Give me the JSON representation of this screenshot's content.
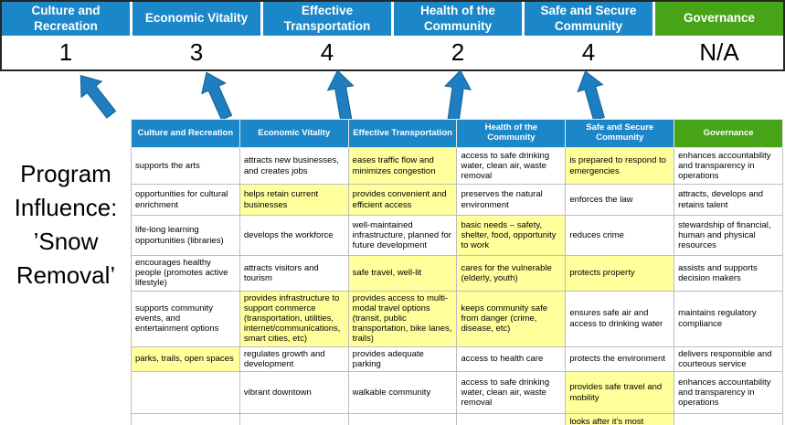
{
  "colors": {
    "header_blue": "#1b87c9",
    "header_green": "#47a417",
    "highlight_yellow": "#ffff9c",
    "arrow_blue": "#1f7ec2"
  },
  "pillars": [
    {
      "label": "Culture and Recreation",
      "score": "1"
    },
    {
      "label": "Economic Vitality",
      "score": "3"
    },
    {
      "label": "Effective Transportation",
      "score": "4"
    },
    {
      "label": "Health of the Community",
      "score": "2"
    },
    {
      "label": "Safe and Secure Community",
      "score": "4"
    },
    {
      "label": "Governance",
      "score": "N/A"
    }
  ],
  "program_label": "Program Influence: ’Snow Removal’",
  "table": {
    "headers": [
      "Culture and Recreation",
      "Economic Vitality",
      "Effective Transportation",
      "Health of the Community",
      "Safe and Secure Community",
      "Governance"
    ],
    "rows": [
      [
        {
          "t": "supports the arts",
          "h": false
        },
        {
          "t": "attracts new businesses, and creates jobs",
          "h": false
        },
        {
          "t": "eases traffic flow and minimizes congestion",
          "h": true
        },
        {
          "t": "access to safe drinking water, clean air, waste removal",
          "h": false
        },
        {
          "t": "is prepared to respond to emergencies",
          "h": true
        },
        {
          "t": "enhances accountability and transparency in operations",
          "h": false
        }
      ],
      [
        {
          "t": "opportunities for cultural enrichment",
          "h": false
        },
        {
          "t": "helps retain current businesses",
          "h": true
        },
        {
          "t": "provides convenient and efficient access",
          "h": true
        },
        {
          "t": "preserves the natural environment",
          "h": false
        },
        {
          "t": "enforces the law",
          "h": false
        },
        {
          "t": "attracts, develops and retains talent",
          "h": false
        }
      ],
      [
        {
          "t": "life-long learning opportunities (libraries)",
          "h": false
        },
        {
          "t": "develops the workforce",
          "h": false
        },
        {
          "t": "well-maintained infrastructure, planned for future development",
          "h": false
        },
        {
          "t": "basic needs – safety, shelter, food, opportunity to work",
          "h": true
        },
        {
          "t": "reduces crime",
          "h": false
        },
        {
          "t": "stewardship of financial, human and physical resources",
          "h": false
        }
      ],
      [
        {
          "t": "encourages healthy people (promotes active lifestyle)",
          "h": false
        },
        {
          "t": "attracts visitors and tourism",
          "h": false
        },
        {
          "t": "safe travel, well-lit",
          "h": true
        },
        {
          "t": "cares for the vulnerable (elderly, youth)",
          "h": true
        },
        {
          "t": "protects property",
          "h": true
        },
        {
          "t": "assists and supports decision makers",
          "h": false
        }
      ],
      [
        {
          "t": "supports community events, and entertainment options",
          "h": false
        },
        {
          "t": "provides infrastructure to support commerce (transportation, utilities, internet/communications, smart cities, etc)",
          "h": true
        },
        {
          "t": "provides access to multi-modal travel options (transit, public transportation, bike lanes, trails)",
          "h": true
        },
        {
          "t": "keeps community safe from danger (crime, disease, etc)",
          "h": true
        },
        {
          "t": "ensures safe air and access to drinking water",
          "h": false
        },
        {
          "t": "maintains regulatory compliance",
          "h": false
        }
      ],
      [
        {
          "t": "parks, trails, open spaces",
          "h": true
        },
        {
          "t": "regulates growth and development",
          "h": false
        },
        {
          "t": "provides adequate parking",
          "h": false
        },
        {
          "t": "access to health care",
          "h": false
        },
        {
          "t": "protects the environment",
          "h": false
        },
        {
          "t": "delivers responsible and courteous service",
          "h": false
        }
      ],
      [
        {
          "t": "",
          "h": false
        },
        {
          "t": "vibrant downtown",
          "h": false
        },
        {
          "t": "walkable community",
          "h": false
        },
        {
          "t": "access to safe drinking water, clean air, waste removal",
          "h": false
        },
        {
          "t": "provides safe travel and mobility",
          "h": true
        },
        {
          "t": "enhances accountability and transparency in operations",
          "h": false
        }
      ],
      [
        {
          "t": "",
          "h": false
        },
        {
          "t": "",
          "h": false
        },
        {
          "t": "",
          "h": false
        },
        {
          "t": "",
          "h": false
        },
        {
          "t": "looks after it's most vulnerable",
          "h": true
        },
        {
          "t": "",
          "h": false
        }
      ]
    ]
  }
}
